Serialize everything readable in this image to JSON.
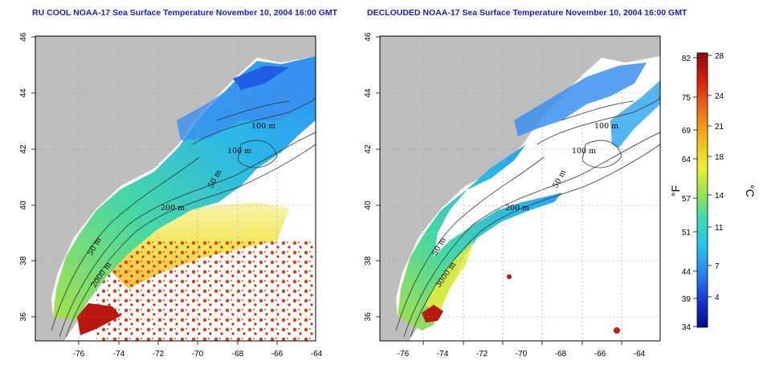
{
  "titles": {
    "left": "RU COOL NOAA-17 Sea Surface Temperature November 10, 2004 16:00 GMT",
    "right": "DECLOUDED NOAA-17 Sea Surface Temperature November 10, 2004 16:00 GMT"
  },
  "axes": {
    "lon_ticks": [
      "-76",
      "-74",
      "-72",
      "-70",
      "-68",
      "-66",
      "-64"
    ],
    "lat_ticks": [
      "46",
      "44",
      "42",
      "40",
      "38",
      "36"
    ]
  },
  "contour_labels": {
    "left": [
      "100 m",
      "100 m",
      "50 m",
      "200 m",
      "50 m",
      "2000 m"
    ],
    "right": [
      "100 m",
      "100 m",
      "50 m",
      "200 m",
      "50 m",
      "3000 m"
    ]
  },
  "colorbar": {
    "fahrenheit_label": "°F",
    "celsius_label": "°C",
    "fahrenheit_ticks": [
      "82",
      "75",
      "69",
      "64",
      "57",
      "51",
      "44",
      "39",
      "34"
    ],
    "celsius_ticks": [
      "28",
      "24",
      "21",
      "18",
      "14",
      "11",
      "7",
      "4"
    ]
  },
  "colors": {
    "land": "#bebebe",
    "no_data": "#ffffff",
    "cold": "#0a1a9c",
    "cool": "#2a9ff0",
    "mild": "#4fd6b0",
    "warm": "#f2e830",
    "hot": "#b4140f"
  }
}
